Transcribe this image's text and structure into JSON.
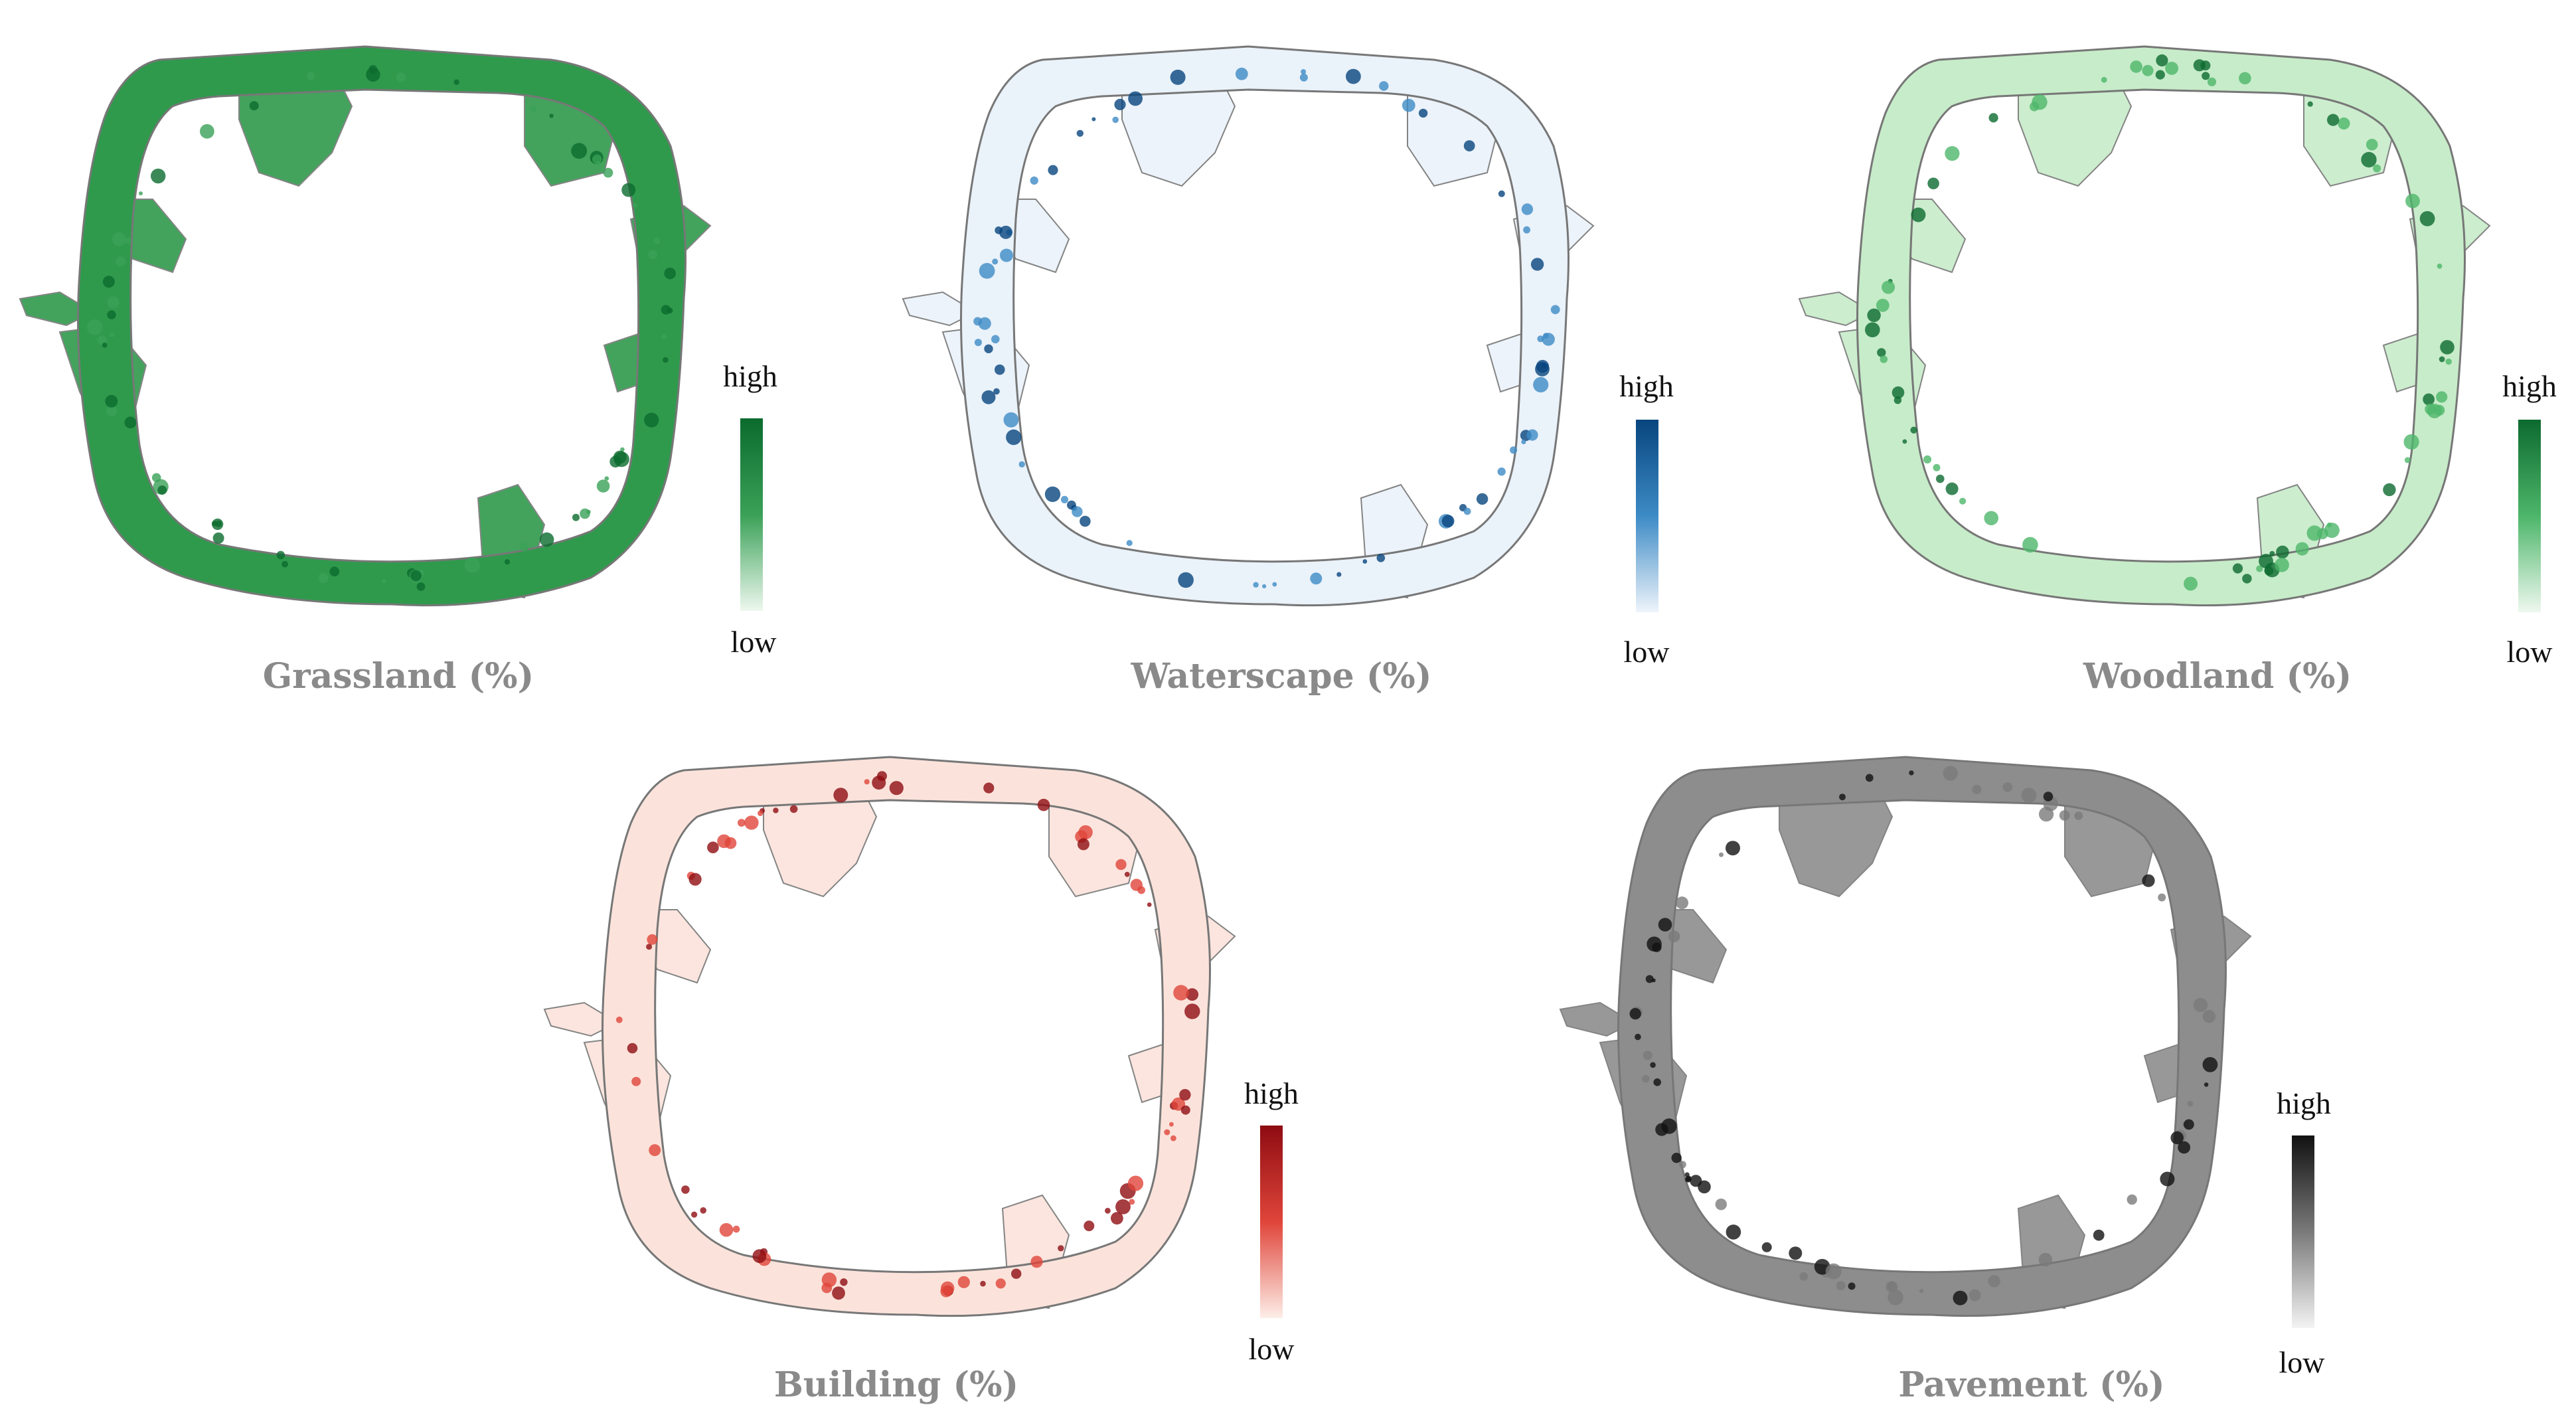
{
  "panels": [
    {
      "key": "grassland",
      "title": "Grassland (%)",
      "legend_high": "high",
      "legend_low": "low",
      "color_high": "#0b6b2e",
      "color_mid": "#3aa157",
      "color_low": "#eef8ef",
      "base_fill": "#2f9a4c"
    },
    {
      "key": "waterscape",
      "title": "Waterscape (%)",
      "legend_high": "high",
      "legend_low": "low",
      "color_high": "#08457e",
      "color_mid": "#3d8bc6",
      "color_low": "#eef4fb",
      "base_fill": "#eaf2fa"
    },
    {
      "key": "woodland",
      "title": "Woodland (%)",
      "legend_high": "high",
      "legend_low": "low",
      "color_high": "#0d6a30",
      "color_mid": "#4db66a",
      "color_low": "#eef8ef",
      "base_fill": "#c7ecc9"
    },
    {
      "key": "building",
      "title": "Building (%)",
      "legend_high": "high",
      "legend_low": "low",
      "color_high": "#8e0c12",
      "color_mid": "#e0453a",
      "color_low": "#fdeee8",
      "base_fill": "#fbe3db"
    },
    {
      "key": "pavement",
      "title": "Pavement (%)",
      "legend_high": "high",
      "legend_low": "low",
      "color_high": "#111111",
      "color_mid": "#7a7a7a",
      "color_low": "#f3f3f3",
      "base_fill": "#8d8d8d"
    }
  ]
}
